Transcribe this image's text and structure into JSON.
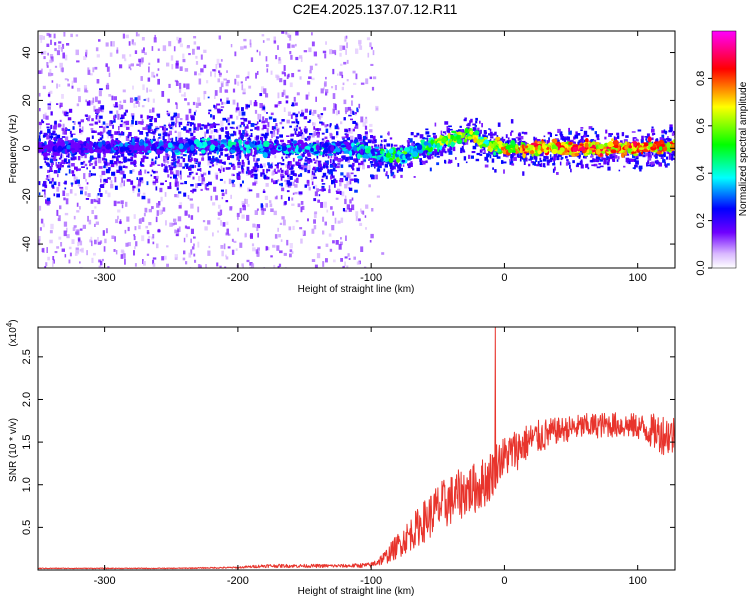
{
  "title": "C2E4.2025.137.07.12.R11",
  "colors": {
    "snr_line": "#e8342c",
    "background": "#ffffff",
    "axis": "#000000"
  },
  "chart_data": [
    {
      "type": "heatmap",
      "xlabel": "Height of straight line (km)",
      "ylabel": "Frequency (Hz)",
      "xlim": [
        -350,
        128
      ],
      "ylim": [
        -50,
        49
      ],
      "xticks": [
        -300,
        -200,
        -100,
        0,
        100
      ],
      "yticks": [
        -40,
        -20,
        0,
        20,
        40
      ],
      "colorbar": {
        "label": "Normalized spectral amplitude",
        "range": [
          0.0,
          1.0
        ],
        "ticks": [
          "0.0",
          "0.2",
          "0.4",
          "0.6",
          "0.8"
        ],
        "colormap": [
          "#ffffff",
          "#6f00ff",
          "#0000ff",
          "#00ffff",
          "#00ff00",
          "#ffff00",
          "#ff0000",
          "#ff00ff"
        ]
      },
      "ridge": {
        "x": [
          -350,
          -200,
          -150,
          -110,
          -100,
          -90,
          -75,
          -60,
          -45,
          -35,
          -25,
          -15,
          0,
          20,
          60,
          100,
          128
        ],
        "frequency": [
          0,
          1,
          0,
          0,
          -2,
          -3,
          -3,
          1,
          3,
          5,
          6,
          2,
          0,
          0,
          0,
          0,
          1
        ],
        "amplitude": [
          0.3,
          0.45,
          0.45,
          0.45,
          0.5,
          0.55,
          0.6,
          0.6,
          0.7,
          0.75,
          0.75,
          0.7,
          0.8,
          0.9,
          0.92,
          0.9,
          0.85
        ]
      },
      "noise_extent_x": [
        -350,
        -110
      ]
    },
    {
      "type": "line",
      "xlabel": "Height of straight line (km)",
      "ylabel": "SNR (10 * v/v)",
      "y_multiplier": "(x10",
      "y_multiplier_exp": "4",
      "y_multiplier_close": ")",
      "xlim": [
        -350,
        128
      ],
      "ylim": [
        0,
        2.85
      ],
      "xticks": [
        -300,
        -200,
        -100,
        0,
        100
      ],
      "yticks": [
        0.5,
        1.0,
        1.5,
        2.0,
        2.5
      ],
      "yticklabels": [
        "0.5",
        "1.0",
        "1.5",
        "2.0",
        "2.5"
      ],
      "series": [
        {
          "x": [
            -350,
            -250,
            -200,
            -180,
            -150,
            -120,
            -100,
            -90,
            -80,
            -70,
            -60,
            -50,
            -40,
            -30,
            -20,
            -12,
            -8,
            -5,
            0,
            10,
            20,
            30,
            40,
            60,
            80,
            100,
            110,
            120,
            128
          ],
          "y": [
            0.02,
            0.02,
            0.03,
            0.05,
            0.05,
            0.05,
            0.06,
            0.15,
            0.3,
            0.45,
            0.6,
            0.75,
            0.85,
            0.95,
            1.0,
            1.1,
            1.2,
            1.3,
            1.35,
            1.45,
            1.55,
            1.6,
            1.65,
            1.7,
            1.72,
            1.7,
            1.65,
            1.62,
            1.6
          ],
          "spread": [
            0.005,
            0.005,
            0.01,
            0.02,
            0.02,
            0.02,
            0.03,
            0.08,
            0.15,
            0.2,
            0.25,
            0.3,
            0.3,
            0.3,
            0.3,
            0.3,
            0.3,
            0.25,
            0.25,
            0.25,
            0.2,
            0.2,
            0.15,
            0.15,
            0.15,
            0.15,
            0.2,
            0.25,
            0.25
          ]
        }
      ],
      "spike": {
        "x": -7,
        "y": 2.85
      }
    }
  ]
}
